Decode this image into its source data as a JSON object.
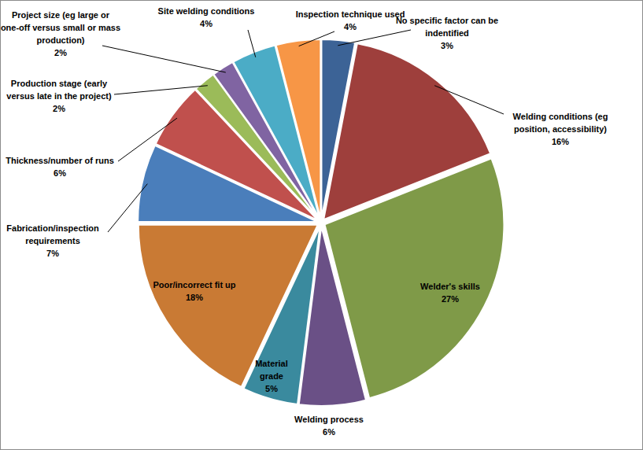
{
  "chart_data": {
    "type": "pie",
    "categories": [
      "No specific factor can be indentified",
      "Welding conditions (eg position, accessibility)",
      "Welder's skills",
      "Welding process",
      "Material grade",
      "Poor/incorrect fit up",
      "Fabrication/inspection requirements",
      "Thickness/number of runs",
      "Production stage (early versus late in the project)",
      "Project size (eg large or one-off versus small or mass production)",
      "Site welding conditions",
      "Inspection technique used"
    ],
    "values": [
      3,
      16,
      27,
      6,
      5,
      18,
      7,
      6,
      2,
      2,
      4,
      4
    ],
    "value_labels": [
      "3%",
      "16%",
      "27%",
      "6%",
      "5%",
      "18%",
      "7%",
      "6%",
      "2%",
      "2%",
      "4%",
      "4%"
    ],
    "colors": [
      "#3c6396",
      "#9e3f3c",
      "#7f9a48",
      "#6a5086",
      "#3a8a9e",
      "#c97a34",
      "#4a7ebb",
      "#c0504d",
      "#9bbb59",
      "#8064a2",
      "#4bacc6",
      "#f79646"
    ],
    "data_labels": true
  }
}
